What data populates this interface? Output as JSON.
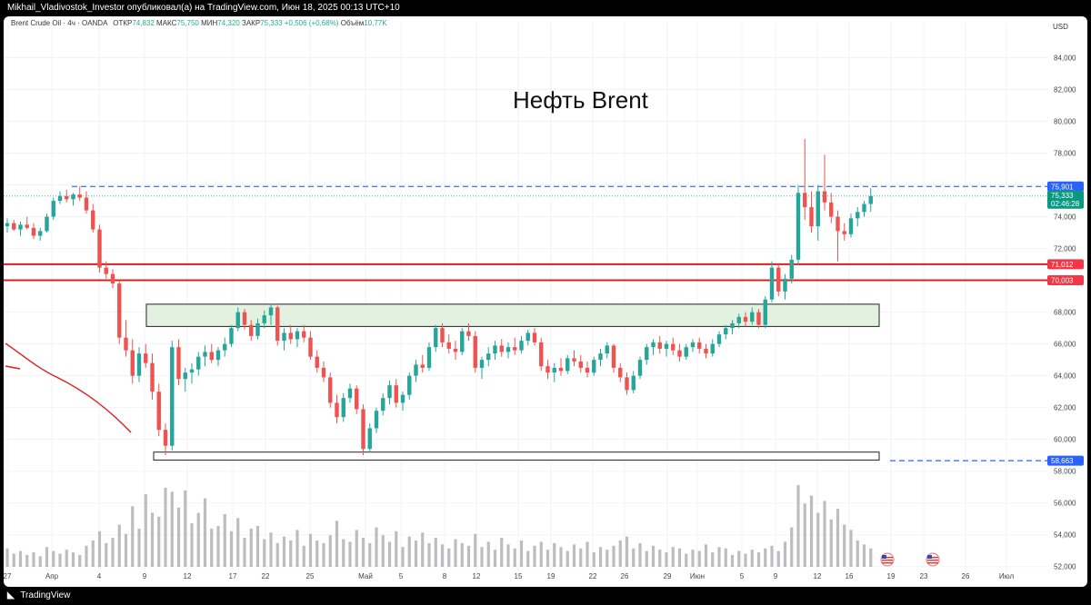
{
  "top_bar": {
    "publisher": "Mikhail_Vladivostok_Investor опубликовал(а) на TradingView.com, Июн 18, 2025 00:13 UTC+10"
  },
  "legend": {
    "instrument": "Brent Crude Oil · 4ч · OANDA",
    "open_label": "ОТКР",
    "open_value": "74,832",
    "high_label": "МАКС",
    "high_value": "75,750",
    "low_label": "МИН",
    "low_value": "74,320",
    "close_label": "ЗАКР",
    "close_value": "75,333",
    "change": "+0,506 (+0,68%)",
    "volume_label": "Объём",
    "volume_value": "10,77K"
  },
  "bottom_bar": {
    "brand": "TradingView"
  },
  "chart_data": {
    "type": "candlestick",
    "title": "Нефть Brent",
    "currency": "USD",
    "y_axis": {
      "ticks": [
        "84,000",
        "82,000",
        "80,000",
        "78,000",
        "76,000",
        "74,000",
        "72,000",
        "70,000",
        "68,000",
        "66,000",
        "64,000",
        "62,000",
        "60,000",
        "58,000",
        "56,000",
        "54,000",
        "52,000"
      ],
      "range": [
        50.9,
        86.2
      ]
    },
    "x_axis": {
      "ticks": [
        "27",
        "Апр",
        "4",
        "9",
        "12",
        "17",
        "22",
        "25",
        "Май",
        "5",
        "8",
        "12",
        "15",
        "19",
        "22",
        "26",
        "29",
        "Июн",
        "5",
        "9",
        "12",
        "16",
        "19",
        "23",
        "26",
        "Июл"
      ]
    },
    "price_tags": [
      {
        "value": 75.901,
        "label": "75,901",
        "color": "#2962ff"
      },
      {
        "value": 75.333,
        "label": "75,333",
        "color": "#089981",
        "countdown": "02:46:28"
      },
      {
        "value": 71.012,
        "label": "71,012",
        "color": "#f23645"
      },
      {
        "value": 70.003,
        "label": "70,003",
        "color": "#f23645"
      },
      {
        "value": 58.663,
        "label": "58,663",
        "color": "#2962ff"
      }
    ],
    "horizontal_levels": [
      {
        "value": 75.901,
        "style": "dashed",
        "color": "#2962ff"
      },
      {
        "value": 71.012,
        "style": "solid",
        "color": "#e11d1d"
      },
      {
        "value": 70.003,
        "style": "solid",
        "color": "#e11d1d"
      },
      {
        "value": 58.663,
        "style": "dashed",
        "color": "#2962ff"
      }
    ],
    "zones": [
      {
        "low": 67.1,
        "high": 68.5,
        "fill": "#e3f2e0"
      },
      {
        "low": 58.7,
        "high": 59.2,
        "fill": "#ffffff"
      }
    ],
    "colors": {
      "up": "#26a69a",
      "down": "#ef5350",
      "volume": "#bdbdbd",
      "line": "#e11d1d"
    },
    "candles": [
      {
        "t": 0,
        "o": 73.4,
        "h": 73.9,
        "l": 73.0,
        "c": 73.6
      },
      {
        "t": 1,
        "o": 73.6,
        "h": 73.8,
        "l": 73.1,
        "c": 73.2
      },
      {
        "t": 2,
        "o": 73.2,
        "h": 73.7,
        "l": 72.8,
        "c": 73.5
      },
      {
        "t": 3,
        "o": 73.5,
        "h": 74.0,
        "l": 73.2,
        "c": 73.3
      },
      {
        "t": 4,
        "o": 73.3,
        "h": 73.6,
        "l": 72.6,
        "c": 72.8
      },
      {
        "t": 5,
        "o": 72.8,
        "h": 73.3,
        "l": 72.5,
        "c": 73.1
      },
      {
        "t": 6,
        "o": 73.1,
        "h": 74.2,
        "l": 73.0,
        "c": 74.0
      },
      {
        "t": 7,
        "o": 74.0,
        "h": 75.2,
        "l": 73.8,
        "c": 75.0
      },
      {
        "t": 8,
        "o": 75.0,
        "h": 75.6,
        "l": 74.8,
        "c": 75.3
      },
      {
        "t": 9,
        "o": 75.3,
        "h": 75.7,
        "l": 74.9,
        "c": 75.1
      },
      {
        "t": 10,
        "o": 75.1,
        "h": 75.5,
        "l": 74.7,
        "c": 75.4
      },
      {
        "t": 11,
        "o": 75.4,
        "h": 75.9,
        "l": 75.0,
        "c": 75.2
      },
      {
        "t": 12,
        "o": 75.2,
        "h": 75.6,
        "l": 74.2,
        "c": 74.4
      },
      {
        "t": 13,
        "o": 74.4,
        "h": 74.8,
        "l": 73.0,
        "c": 73.2
      },
      {
        "t": 14,
        "o": 73.2,
        "h": 73.5,
        "l": 70.5,
        "c": 70.8
      },
      {
        "t": 15,
        "o": 70.8,
        "h": 71.2,
        "l": 70.1,
        "c": 70.4
      },
      {
        "t": 16,
        "o": 70.4,
        "h": 70.7,
        "l": 69.5,
        "c": 69.8
      },
      {
        "t": 17,
        "o": 69.8,
        "h": 70.0,
        "l": 66.0,
        "c": 66.4
      },
      {
        "t": 18,
        "o": 66.4,
        "h": 67.5,
        "l": 65.2,
        "c": 65.6
      },
      {
        "t": 19,
        "o": 65.6,
        "h": 66.3,
        "l": 63.5,
        "c": 64.0
      },
      {
        "t": 20,
        "o": 64.0,
        "h": 65.8,
        "l": 63.6,
        "c": 65.4
      },
      {
        "t": 21,
        "o": 65.4,
        "h": 66.0,
        "l": 64.5,
        "c": 64.8
      },
      {
        "t": 22,
        "o": 64.8,
        "h": 65.4,
        "l": 62.5,
        "c": 63.0
      },
      {
        "t": 23,
        "o": 63.0,
        "h": 63.5,
        "l": 60.2,
        "c": 60.6
      },
      {
        "t": 24,
        "o": 60.6,
        "h": 61.0,
        "l": 59.0,
        "c": 59.6
      },
      {
        "t": 25,
        "o": 59.6,
        "h": 66.2,
        "l": 59.3,
        "c": 65.8
      },
      {
        "t": 26,
        "o": 65.8,
        "h": 66.3,
        "l": 63.4,
        "c": 63.8
      },
      {
        "t": 27,
        "o": 63.8,
        "h": 64.5,
        "l": 63.0,
        "c": 64.2
      },
      {
        "t": 28,
        "o": 64.2,
        "h": 64.8,
        "l": 63.5,
        "c": 64.4
      },
      {
        "t": 29,
        "o": 64.4,
        "h": 65.5,
        "l": 64.0,
        "c": 65.2
      },
      {
        "t": 30,
        "o": 65.2,
        "h": 65.9,
        "l": 64.6,
        "c": 65.5
      },
      {
        "t": 31,
        "o": 65.5,
        "h": 66.0,
        "l": 64.8,
        "c": 65.0
      },
      {
        "t": 32,
        "o": 65.0,
        "h": 65.8,
        "l": 64.6,
        "c": 65.6
      },
      {
        "t": 33,
        "o": 65.6,
        "h": 66.4,
        "l": 65.2,
        "c": 66.0
      },
      {
        "t": 34,
        "o": 66.0,
        "h": 67.2,
        "l": 65.8,
        "c": 67.0
      },
      {
        "t": 35,
        "o": 67.0,
        "h": 68.3,
        "l": 66.8,
        "c": 68.0
      },
      {
        "t": 36,
        "o": 68.0,
        "h": 68.2,
        "l": 66.9,
        "c": 67.2
      },
      {
        "t": 37,
        "o": 67.2,
        "h": 67.5,
        "l": 66.2,
        "c": 66.5
      },
      {
        "t": 38,
        "o": 66.5,
        "h": 67.6,
        "l": 66.3,
        "c": 67.3
      },
      {
        "t": 39,
        "o": 67.3,
        "h": 68.1,
        "l": 67.0,
        "c": 67.8
      },
      {
        "t": 40,
        "o": 67.8,
        "h": 68.5,
        "l": 67.2,
        "c": 68.3
      },
      {
        "t": 41,
        "o": 68.3,
        "h": 68.4,
        "l": 65.9,
        "c": 66.2
      },
      {
        "t": 42,
        "o": 66.2,
        "h": 67.0,
        "l": 65.6,
        "c": 66.7
      },
      {
        "t": 43,
        "o": 66.7,
        "h": 67.2,
        "l": 66.0,
        "c": 66.3
      },
      {
        "t": 44,
        "o": 66.3,
        "h": 67.0,
        "l": 65.8,
        "c": 66.8
      },
      {
        "t": 45,
        "o": 66.8,
        "h": 67.2,
        "l": 66.1,
        "c": 66.4
      },
      {
        "t": 46,
        "o": 66.4,
        "h": 66.8,
        "l": 65.0,
        "c": 65.2
      },
      {
        "t": 47,
        "o": 65.2,
        "h": 65.6,
        "l": 64.2,
        "c": 64.5
      },
      {
        "t": 48,
        "o": 64.5,
        "h": 64.9,
        "l": 63.6,
        "c": 63.9
      },
      {
        "t": 49,
        "o": 63.9,
        "h": 64.2,
        "l": 62.0,
        "c": 62.3
      },
      {
        "t": 50,
        "o": 62.3,
        "h": 62.8,
        "l": 61.0,
        "c": 61.4
      },
      {
        "t": 51,
        "o": 61.4,
        "h": 62.9,
        "l": 61.1,
        "c": 62.6
      },
      {
        "t": 52,
        "o": 62.6,
        "h": 63.5,
        "l": 62.3,
        "c": 63.2
      },
      {
        "t": 53,
        "o": 63.2,
        "h": 63.4,
        "l": 61.6,
        "c": 61.9
      },
      {
        "t": 54,
        "o": 61.9,
        "h": 62.2,
        "l": 59.0,
        "c": 59.4
      },
      {
        "t": 55,
        "o": 59.4,
        "h": 61.0,
        "l": 59.2,
        "c": 60.7
      },
      {
        "t": 56,
        "o": 60.7,
        "h": 62.0,
        "l": 60.4,
        "c": 61.8
      },
      {
        "t": 57,
        "o": 61.8,
        "h": 62.9,
        "l": 61.5,
        "c": 62.6
      },
      {
        "t": 58,
        "o": 62.6,
        "h": 63.7,
        "l": 62.2,
        "c": 63.4
      },
      {
        "t": 59,
        "o": 63.4,
        "h": 63.8,
        "l": 62.0,
        "c": 62.3
      },
      {
        "t": 60,
        "o": 62.3,
        "h": 63.0,
        "l": 61.8,
        "c": 62.8
      },
      {
        "t": 61,
        "o": 62.8,
        "h": 64.2,
        "l": 62.5,
        "c": 64.0
      },
      {
        "t": 62,
        "o": 64.0,
        "h": 65.0,
        "l": 63.6,
        "c": 64.7
      },
      {
        "t": 63,
        "o": 64.7,
        "h": 65.3,
        "l": 64.2,
        "c": 64.5
      },
      {
        "t": 64,
        "o": 64.5,
        "h": 66.1,
        "l": 64.3,
        "c": 65.8
      },
      {
        "t": 65,
        "o": 65.8,
        "h": 67.2,
        "l": 65.5,
        "c": 67.0
      },
      {
        "t": 66,
        "o": 67.0,
        "h": 67.3,
        "l": 65.8,
        "c": 66.1
      },
      {
        "t": 67,
        "o": 66.1,
        "h": 66.6,
        "l": 65.4,
        "c": 65.7
      },
      {
        "t": 68,
        "o": 65.7,
        "h": 66.2,
        "l": 65.0,
        "c": 65.5
      },
      {
        "t": 69,
        "o": 65.5,
        "h": 67.0,
        "l": 65.3,
        "c": 66.8
      },
      {
        "t": 70,
        "o": 66.8,
        "h": 67.3,
        "l": 66.2,
        "c": 66.5
      },
      {
        "t": 71,
        "o": 66.5,
        "h": 66.8,
        "l": 64.2,
        "c": 64.5
      },
      {
        "t": 72,
        "o": 64.5,
        "h": 65.2,
        "l": 63.8,
        "c": 65.0
      },
      {
        "t": 73,
        "o": 65.0,
        "h": 65.8,
        "l": 64.6,
        "c": 65.4
      },
      {
        "t": 74,
        "o": 65.4,
        "h": 66.2,
        "l": 65.0,
        "c": 65.9
      },
      {
        "t": 75,
        "o": 65.9,
        "h": 66.3,
        "l": 65.2,
        "c": 65.5
      },
      {
        "t": 76,
        "o": 65.5,
        "h": 66.1,
        "l": 65.1,
        "c": 65.8
      },
      {
        "t": 77,
        "o": 65.8,
        "h": 66.4,
        "l": 65.3,
        "c": 65.6
      },
      {
        "t": 78,
        "o": 65.6,
        "h": 66.5,
        "l": 65.4,
        "c": 66.2
      },
      {
        "t": 79,
        "o": 66.2,
        "h": 66.9,
        "l": 65.9,
        "c": 66.7
      },
      {
        "t": 80,
        "o": 66.7,
        "h": 67.0,
        "l": 65.9,
        "c": 66.1
      },
      {
        "t": 81,
        "o": 66.1,
        "h": 66.4,
        "l": 64.3,
        "c": 64.6
      },
      {
        "t": 82,
        "o": 64.6,
        "h": 65.0,
        "l": 63.8,
        "c": 64.2
      },
      {
        "t": 83,
        "o": 64.2,
        "h": 64.8,
        "l": 63.6,
        "c": 64.5
      },
      {
        "t": 84,
        "o": 64.5,
        "h": 65.1,
        "l": 64.0,
        "c": 64.3
      },
      {
        "t": 85,
        "o": 64.3,
        "h": 65.3,
        "l": 64.1,
        "c": 65.1
      },
      {
        "t": 86,
        "o": 65.1,
        "h": 65.6,
        "l": 64.6,
        "c": 64.9
      },
      {
        "t": 87,
        "o": 64.9,
        "h": 65.3,
        "l": 64.2,
        "c": 64.5
      },
      {
        "t": 88,
        "o": 64.5,
        "h": 64.9,
        "l": 63.9,
        "c": 64.2
      },
      {
        "t": 89,
        "o": 64.2,
        "h": 65.2,
        "l": 64.0,
        "c": 65.0
      },
      {
        "t": 90,
        "o": 65.0,
        "h": 65.7,
        "l": 64.6,
        "c": 65.4
      },
      {
        "t": 91,
        "o": 65.4,
        "h": 66.1,
        "l": 65.1,
        "c": 65.9
      },
      {
        "t": 92,
        "o": 65.9,
        "h": 66.0,
        "l": 64.2,
        "c": 64.5
      },
      {
        "t": 93,
        "o": 64.5,
        "h": 64.8,
        "l": 63.6,
        "c": 63.9
      },
      {
        "t": 94,
        "o": 63.9,
        "h": 64.2,
        "l": 62.8,
        "c": 63.1
      },
      {
        "t": 95,
        "o": 63.1,
        "h": 64.3,
        "l": 62.9,
        "c": 64.0
      },
      {
        "t": 96,
        "o": 64.0,
        "h": 65.2,
        "l": 63.8,
        "c": 65.0
      },
      {
        "t": 97,
        "o": 65.0,
        "h": 66.0,
        "l": 64.7,
        "c": 65.8
      },
      {
        "t": 98,
        "o": 65.8,
        "h": 66.3,
        "l": 65.3,
        "c": 66.1
      },
      {
        "t": 99,
        "o": 66.1,
        "h": 66.5,
        "l": 65.4,
        "c": 65.7
      },
      {
        "t": 100,
        "o": 65.7,
        "h": 66.2,
        "l": 65.2,
        "c": 66.0
      },
      {
        "t": 101,
        "o": 66.0,
        "h": 66.4,
        "l": 65.3,
        "c": 65.6
      },
      {
        "t": 102,
        "o": 65.6,
        "h": 66.0,
        "l": 64.9,
        "c": 65.2
      },
      {
        "t": 103,
        "o": 65.2,
        "h": 66.0,
        "l": 65.0,
        "c": 65.8
      },
      {
        "t": 104,
        "o": 65.8,
        "h": 66.3,
        "l": 65.5,
        "c": 66.1
      },
      {
        "t": 105,
        "o": 66.1,
        "h": 66.4,
        "l": 65.4,
        "c": 65.7
      },
      {
        "t": 106,
        "o": 65.7,
        "h": 66.0,
        "l": 65.1,
        "c": 65.4
      },
      {
        "t": 107,
        "o": 65.4,
        "h": 66.3,
        "l": 65.2,
        "c": 66.0
      },
      {
        "t": 108,
        "o": 66.0,
        "h": 66.8,
        "l": 65.8,
        "c": 66.6
      },
      {
        "t": 109,
        "o": 66.6,
        "h": 67.2,
        "l": 66.3,
        "c": 67.0
      },
      {
        "t": 110,
        "o": 67.0,
        "h": 67.5,
        "l": 66.6,
        "c": 67.3
      },
      {
        "t": 111,
        "o": 67.3,
        "h": 67.9,
        "l": 67.0,
        "c": 67.7
      },
      {
        "t": 112,
        "o": 67.7,
        "h": 68.0,
        "l": 67.1,
        "c": 67.4
      },
      {
        "t": 113,
        "o": 67.4,
        "h": 68.3,
        "l": 67.2,
        "c": 68.0
      },
      {
        "t": 114,
        "o": 68.0,
        "h": 68.2,
        "l": 67.0,
        "c": 67.2
      },
      {
        "t": 115,
        "o": 67.2,
        "h": 69.0,
        "l": 67.0,
        "c": 68.8
      },
      {
        "t": 116,
        "o": 68.8,
        "h": 71.2,
        "l": 68.6,
        "c": 70.8
      },
      {
        "t": 117,
        "o": 70.8,
        "h": 71.0,
        "l": 69.0,
        "c": 69.3
      },
      {
        "t": 118,
        "o": 69.3,
        "h": 70.4,
        "l": 68.8,
        "c": 70.1
      },
      {
        "t": 119,
        "o": 70.1,
        "h": 71.6,
        "l": 69.8,
        "c": 71.3
      },
      {
        "t": 120,
        "o": 71.3,
        "h": 76.0,
        "l": 71.0,
        "c": 75.5
      },
      {
        "t": 121,
        "o": 75.5,
        "h": 78.9,
        "l": 73.8,
        "c": 74.6
      },
      {
        "t": 122,
        "o": 74.6,
        "h": 75.6,
        "l": 73.0,
        "c": 73.4
      },
      {
        "t": 123,
        "o": 73.4,
        "h": 76.0,
        "l": 72.5,
        "c": 75.6
      },
      {
        "t": 124,
        "o": 75.6,
        "h": 77.9,
        "l": 74.4,
        "c": 74.9
      },
      {
        "t": 125,
        "o": 74.9,
        "h": 75.5,
        "l": 73.6,
        "c": 74.0
      },
      {
        "t": 126,
        "o": 74.0,
        "h": 74.4,
        "l": 71.2,
        "c": 73.1
      },
      {
        "t": 127,
        "o": 73.1,
        "h": 73.6,
        "l": 72.5,
        "c": 72.9
      },
      {
        "t": 128,
        "o": 72.9,
        "h": 74.2,
        "l": 72.7,
        "c": 73.9
      },
      {
        "t": 129,
        "o": 73.9,
        "h": 74.6,
        "l": 73.4,
        "c": 74.3
      },
      {
        "t": 130,
        "o": 74.3,
        "h": 75.0,
        "l": 74.0,
        "c": 74.8
      },
      {
        "t": 131,
        "o": 74.8,
        "h": 75.8,
        "l": 74.3,
        "c": 75.3
      }
    ],
    "volumes": [
      14,
      10,
      12,
      9,
      11,
      8,
      15,
      12,
      10,
      13,
      11,
      9,
      16,
      20,
      27,
      18,
      22,
      32,
      25,
      46,
      29,
      55,
      41,
      38,
      60,
      57,
      45,
      58,
      33,
      41,
      52,
      29,
      31,
      40,
      27,
      37,
      22,
      29,
      31,
      21,
      26,
      18,
      23,
      20,
      28,
      16,
      25,
      20,
      18,
      24,
      35,
      21,
      19,
      28,
      22,
      18,
      30,
      24,
      19,
      27,
      15,
      23,
      20,
      26,
      18,
      22,
      17,
      14,
      21,
      18,
      16,
      25,
      15,
      19,
      13,
      22,
      17,
      14,
      20,
      12,
      16,
      19,
      13,
      18,
      15,
      12,
      17,
      14,
      19,
      11,
      15,
      13,
      16,
      20,
      23,
      14,
      18,
      12,
      16,
      13,
      11,
      15,
      14,
      10,
      13,
      12,
      17,
      11,
      15,
      14,
      9,
      12,
      10,
      13,
      11,
      14,
      16,
      12,
      19,
      30,
      62,
      48,
      54,
      41,
      50,
      36,
      44,
      32,
      28,
      20,
      17,
      14
    ]
  }
}
